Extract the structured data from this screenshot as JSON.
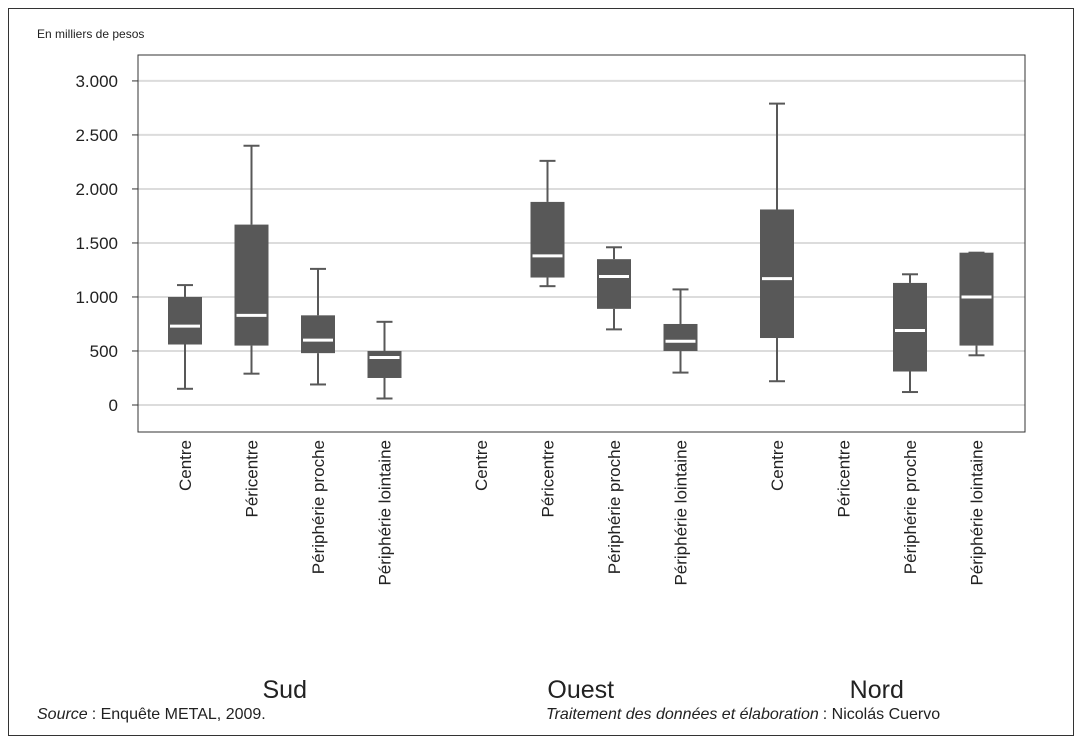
{
  "chart_data": {
    "type": "box",
    "y_label": "En milliers de pesos",
    "ylim": [
      -250,
      3240
    ],
    "yticks": [
      0,
      500,
      {
        "value": 1000,
        "label": "1.000"
      },
      {
        "value": 1500,
        "label": "1.500"
      },
      {
        "value": 2000,
        "label": "2.000"
      },
      {
        "value": 2500,
        "label": "2.500"
      },
      {
        "value": 3000,
        "label": "3.000"
      }
    ],
    "grid": true,
    "color": "#585858",
    "median_color": "#ffffff",
    "groups": [
      {
        "name": "Sud",
        "categories": [
          "Centre",
          "Péricentre",
          "Périphérie proche",
          "Périphérie lointaine"
        ],
        "boxes": [
          {
            "whislo": 150,
            "q1": 560,
            "med": 730,
            "q3": 1000,
            "whishi": 1110
          },
          {
            "whislo": 290,
            "q1": 550,
            "med": 830,
            "q3": 1670,
            "whishi": 2400
          },
          {
            "whislo": 190,
            "q1": 480,
            "med": 600,
            "q3": 830,
            "whishi": 1260
          },
          {
            "whislo": 60,
            "q1": 250,
            "med": 440,
            "q3": 500,
            "whishi": 770
          }
        ]
      },
      {
        "name": "Ouest",
        "categories": [
          "Centre",
          "Péricentre",
          "Périphérie proche",
          "Périphérie lointaine"
        ],
        "boxes": [
          null,
          {
            "whislo": 1100,
            "q1": 1180,
            "med": 1380,
            "q3": 1880,
            "whishi": 2260
          },
          {
            "whislo": 700,
            "q1": 890,
            "med": 1190,
            "q3": 1350,
            "whishi": 1460
          },
          {
            "whislo": 300,
            "q1": 500,
            "med": 590,
            "q3": 750,
            "whishi": 1070
          }
        ]
      },
      {
        "name": "Nord",
        "categories": [
          "Centre",
          "Péricentre",
          "Périphérie proche",
          "Périphérie lointaine"
        ],
        "boxes": [
          {
            "whislo": 220,
            "q1": 620,
            "med": 1170,
            "q3": 1810,
            "whishi": 2790
          },
          null,
          {
            "whislo": 120,
            "q1": 310,
            "med": 690,
            "q3": 1130,
            "whishi": 1210
          },
          {
            "whislo": 460,
            "q1": 550,
            "med": 1000,
            "q3": 1410,
            "whishi": 1410
          }
        ]
      }
    ],
    "source_label": "Source",
    "source_text": ": Enquête METAL, 2009.",
    "credit_label": "Traitement des données et élaboration",
    "credit_text": ": Nicolás Cuervo"
  }
}
